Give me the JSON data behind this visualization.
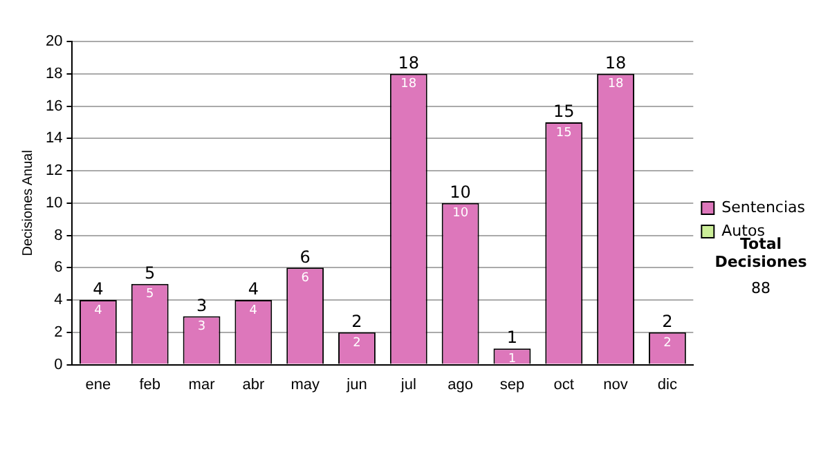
{
  "chart_data": {
    "type": "bar",
    "ylabel": "Decisiones Anual",
    "categories": [
      "ene",
      "feb",
      "mar",
      "abr",
      "may",
      "jun",
      "jul",
      "ago",
      "sep",
      "oct",
      "nov",
      "dic"
    ],
    "series": [
      {
        "name": "Sentencias",
        "color": "#dd77bb",
        "values": [
          4,
          5,
          3,
          4,
          6,
          2,
          18,
          10,
          1,
          15,
          18,
          2
        ],
        "value_labels": [
          "4",
          "5",
          "3",
          "4",
          "6",
          "2",
          "18",
          "10",
          "1",
          "15",
          "18",
          "2"
        ]
      },
      {
        "name": "Autos",
        "color": "#ccee99",
        "values": [
          0,
          0,
          0,
          0,
          0,
          0,
          0,
          0,
          0,
          0,
          0,
          0
        ]
      }
    ],
    "stacked": true,
    "totals": [
      "4",
      "5",
      "3",
      "4",
      "6",
      "2",
      "18",
      "10",
      "1",
      "15",
      "18",
      "2"
    ],
    "ylim": [
      0,
      20
    ],
    "yticks": [
      0,
      2,
      4,
      6,
      8,
      10,
      12,
      14,
      16,
      18,
      20
    ],
    "grid": "y",
    "legend": "right",
    "annotations": [
      "Total Decisiones",
      "88"
    ]
  }
}
